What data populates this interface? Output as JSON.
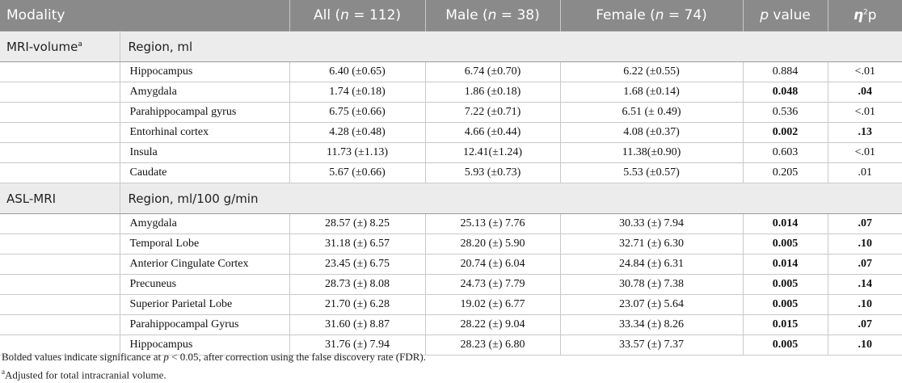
{
  "header": {
    "modality": "Modality",
    "all_prefix": "All (",
    "all_n": "n",
    "all_suffix": " = 112)",
    "male_prefix": "Male (",
    "male_n": "n",
    "male_suffix": " = 38)",
    "female_prefix": "Female (",
    "female_n": "n",
    "female_suffix": " = 74)",
    "p_italic": "p",
    "p_suffix": " value",
    "eta": "η",
    "eta_sup": "2",
    "eta_suffix": "p"
  },
  "sections": [
    {
      "modality": "MRI-volume",
      "modality_sup": "a",
      "region_label": "Region, ml",
      "rows": [
        {
          "label": "Hippocampus",
          "all": "6.40 (±0.65)",
          "male": "6.74 (±0.70)",
          "female": "6.22 (±0.55)",
          "p": "0.884",
          "eta": "<.01",
          "bold": false
        },
        {
          "label": "Amygdala",
          "all": "1.74 (±0.18)",
          "male": "1.86 (±0.18)",
          "female": "1.68 (±0.14)",
          "p": "0.048",
          "eta": ".04",
          "bold": true
        },
        {
          "label": "Parahippocampal gyrus",
          "all": "6.75 (±0.66)",
          "male": "7.22 (±0.71)",
          "female": "6.51 (± 0.49)",
          "p": "0.536",
          "eta": "<.01",
          "bold": false
        },
        {
          "label": "Entorhinal cortex",
          "all": "4.28 (±0.48)",
          "male": "4.66 (±0.44)",
          "female": "4.08 (±0.37)",
          "p": "0.002",
          "eta": ".13",
          "bold": true
        },
        {
          "label": "Insula",
          "all": "11.73 (±1.13)",
          "male": "12.41(±1.24)",
          "female": "11.38(±0.90)",
          "p": "0.603",
          "eta": "<.01",
          "bold": false
        },
        {
          "label": "Caudate",
          "all": "5.67 (±0.66)",
          "male": "5.93 (±0.73)",
          "female": "5.53 (±0.57)",
          "p": "0.205",
          "eta": ".01",
          "bold": false
        }
      ]
    },
    {
      "modality": "ASL-MRI",
      "modality_sup": "",
      "region_label": "Region, ml/100 g/min",
      "rows": [
        {
          "label": "Amygdala",
          "all": "28.57 (±) 8.25",
          "male": "25.13 (±) 7.76",
          "female": "30.33 (±) 7.94",
          "p": "0.014",
          "eta": ".07",
          "bold": true
        },
        {
          "label": "Temporal Lobe",
          "all": "31.18 (±) 6.57",
          "male": "28.20 (±) 5.90",
          "female": "32.71 (±) 6.30",
          "p": "0.005",
          "eta": ".10",
          "bold": true
        },
        {
          "label": "Anterior Cingulate Cortex",
          "all": "23.45 (±) 6.75",
          "male": "20.74 (±) 6.04",
          "female": "24.84 (±) 6.31",
          "p": "0.014",
          "eta": ".07",
          "bold": true
        },
        {
          "label": "Precuneus",
          "all": "28.73 (±) 8.08",
          "male": "24.73 (±) 7.79",
          "female": "30.78 (±) 7.38",
          "p": "0.005",
          "eta": ".14",
          "bold": true
        },
        {
          "label": "Superior Parietal Lobe",
          "all": "21.70 (±) 6.28",
          "male": "19.02 (±) 6.77",
          "female": "23.07 (±) 5.64",
          "p": "0.005",
          "eta": ".10",
          "bold": true
        },
        {
          "label": "Parahippocampal Gyrus",
          "all": "31.60 (±) 8.87",
          "male": "28.22 (±) 9.04",
          "female": "33.34 (±) 8.26",
          "p": "0.015",
          "eta": ".07",
          "bold": true
        },
        {
          "label": "Hippocampus",
          "all": "31.76 (±) 7.94",
          "male": "28.23 (±) 6.80",
          "female": "33.57 (±) 7.37",
          "p": "0.005",
          "eta": ".10",
          "bold": true
        }
      ]
    }
  ],
  "notes": {
    "line1_prefix": "Bolded values indicate significance at ",
    "line1_p": "p",
    "line1_suffix": " < 0.05, after correction using the false discovery rate (FDR).",
    "line2_sup": "a",
    "line2_text": "Adjusted for total intracranial volume."
  },
  "colors": {
    "header_bg": "#8a8a8a",
    "section_bg": "#ececec",
    "grid": "#c9c9c9"
  }
}
